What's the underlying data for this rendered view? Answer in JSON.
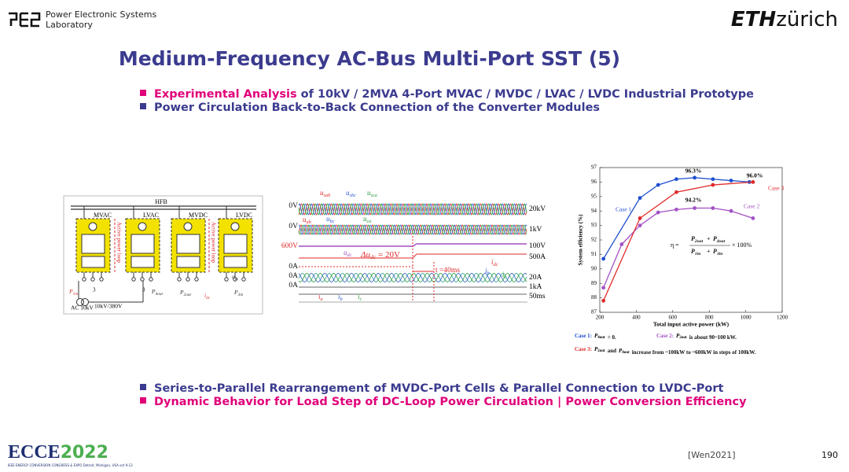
{
  "header": {
    "lab": [
      "Power Electronic Systems",
      "Laboratory"
    ],
    "logo": {
      "bold": "ETH",
      "rest": "zürich"
    }
  },
  "title": "Medium-Frequency AC-Bus Multi-Port SST (5)",
  "bullets_top": [
    {
      "highlight": "Experimental Analysis",
      "text": " of 10kV / 2MVA  4-Port MVAC / MVDC / LVAC / LVDC Industrial Prototype"
    },
    {
      "text": "Power Circulation Back-to-Back Connection of the Converter Modules"
    }
  ],
  "diagram": {
    "bus": "HFB",
    "ports": [
      "MVAC",
      "LVAC",
      "MVDC",
      "LVDC"
    ],
    "loop": "Active power loop",
    "source": "AC 10kV",
    "transformer": "10kV/380V",
    "phases": "3",
    "signals": [
      {
        "m": "P",
        "s": "1in"
      },
      {
        "m": "P",
        "s": "4out"
      },
      {
        "m": "P",
        "s": "2out"
      },
      {
        "m": "i",
        "s": "dc"
      },
      {
        "m": "u",
        "s": "dc"
      },
      {
        "m": "P",
        "s": "3in"
      }
    ]
  },
  "scope": {
    "left_labels": [
      "0V",
      "0V",
      "600V",
      "0A",
      "0A",
      "0A"
    ],
    "right_labels": [
      "20kV",
      "1kV",
      "100V",
      "500A",
      "20A",
      "1kA",
      "50ms"
    ],
    "signals": [
      {
        "m": "u",
        "s": "sab"
      },
      {
        "m": "u",
        "s": "sbc"
      },
      {
        "m": "u",
        "s": "sca"
      },
      {
        "m": "u",
        "s": "ab"
      },
      {
        "m": "u",
        "s": "bc"
      },
      {
        "m": "u",
        "s": "ca"
      },
      {
        "m": "u",
        "s": "dc"
      },
      {
        "m": "Δu",
        "s": "dc",
        "after": " = 20V"
      },
      {
        "m": "i",
        "s": "dc"
      },
      {
        "m": "i",
        "s": "b"
      },
      {
        "m": "i",
        "s": "c"
      },
      {
        "m": "i",
        "s": "a"
      },
      {
        "m": "i",
        "s": "b"
      },
      {
        "m": "i",
        "s": "c"
      }
    ],
    "time": "t =40ms"
  },
  "chart_data": {
    "type": "line",
    "xlabel": "Total input active power (kW)",
    "ylabel": "System efficiency (%)",
    "xlim": [
      200,
      1200
    ],
    "xticks": [
      200,
      400,
      600,
      800,
      1000,
      1200
    ],
    "ylim": [
      87,
      97
    ],
    "yticks": [
      87,
      88,
      89,
      90,
      91,
      92,
      93,
      94,
      95,
      96,
      97
    ],
    "grid": false,
    "series": [
      {
        "name": "Case 1",
        "color": "#1f4fd0",
        "x": [
          220,
          420,
          520,
          620,
          720,
          820,
          920,
          1020
        ],
        "values": [
          90.7,
          94.9,
          95.8,
          96.2,
          96.3,
          96.2,
          96.1,
          96.0
        ]
      },
      {
        "name": "Case 2",
        "color": "#a350c4",
        "x": [
          220,
          320,
          420,
          520,
          620,
          720,
          820,
          920,
          1040
        ],
        "values": [
          88.7,
          91.7,
          93.0,
          93.9,
          94.1,
          94.2,
          94.2,
          94.0,
          93.5
        ]
      },
      {
        "name": "Case 3",
        "color": "#e02a2a",
        "x": [
          220,
          420,
          620,
          820,
          1040
        ],
        "values": [
          87.8,
          93.5,
          95.3,
          95.8,
          96.0
        ]
      }
    ],
    "annotations": [
      "96.3%",
      "96.0%",
      "94.2%"
    ],
    "formula": {
      "eta": "η =",
      "num": [
        {
          "m": "P",
          "s": "2out"
        },
        "+",
        {
          "m": "P",
          "s": "4out"
        }
      ],
      "den": [
        {
          "m": "P",
          "s": "1in"
        },
        "+",
        {
          "m": "P",
          "s": "3in"
        }
      ],
      "tail": "× 100%"
    }
  },
  "captions": [
    [
      "Case 1:",
      {
        "m": "P",
        "s": "4out"
      },
      "= 0."
    ],
    [
      "Case 2:",
      {
        "m": "P",
        "s": "2out"
      },
      "is about 90~100 kW."
    ],
    [
      "Case 3:",
      {
        "m": "P",
        "s": "2out"
      },
      "and",
      {
        "m": "P",
        "s": "4out"
      },
      "increase from ~100kW to ~600kW in steps of 100kW."
    ]
  ],
  "bullets_bottom": [
    "Series-to-Parallel Rearrangement of MVDC-Port Cells & Parallel Connection to LVDC-Port",
    "Dynamic Behavior for Load Step of DC-Loop Power Circulation |  Power Conversion Efficiency"
  ],
  "footer": {
    "ref": "[Wen2021]",
    "page": "190",
    "event": "ECCE",
    "year": "2022",
    "event_sub": "IEEE ENERGY CONVERSION CONGRESS & EXPO  Detroit, Michigan, USA  oct 9-13"
  }
}
